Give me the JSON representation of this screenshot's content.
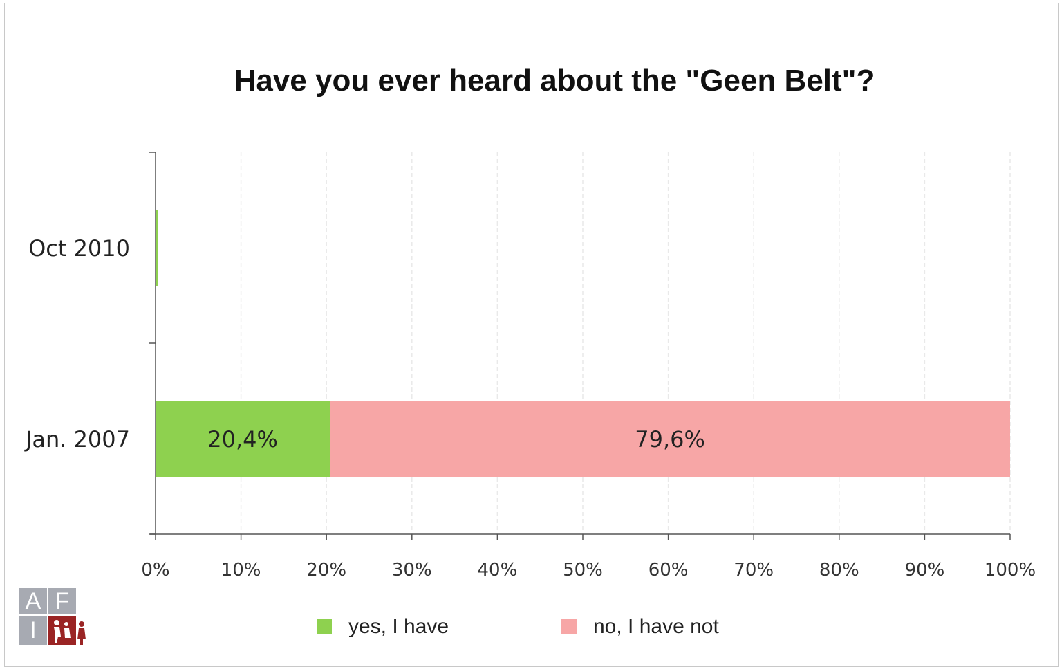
{
  "chart_data": {
    "type": "bar",
    "orientation": "horizontal",
    "stacked": true,
    "title": "Have you ever heard about the \"Geen Belt\"?",
    "categories": [
      "Oct 2010",
      "Jan. 2007"
    ],
    "series": [
      {
        "name": "yes, I have",
        "color": "#8ed14f",
        "values": [
          0,
          20.4
        ],
        "labels": [
          "",
          "20,4%"
        ]
      },
      {
        "name": "no, I have not",
        "color": "#f7a6a6",
        "values": [
          0,
          79.6
        ],
        "labels": [
          "",
          "79,6%"
        ]
      }
    ],
    "xlim": [
      0,
      100
    ],
    "x_ticks": [
      "0%",
      "10%",
      "20%",
      "30%",
      "40%",
      "50%",
      "60%",
      "70%",
      "80%",
      "90%",
      "100%"
    ],
    "grid": true,
    "legend_position": "bottom"
  },
  "logo": {
    "letters": [
      "A",
      "F",
      "I"
    ]
  }
}
